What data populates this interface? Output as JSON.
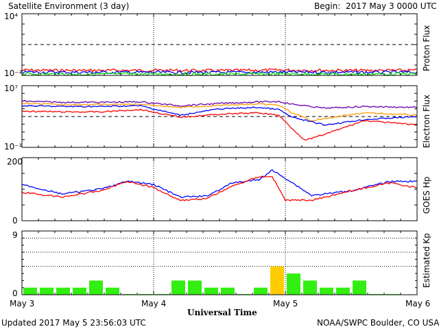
{
  "header": {
    "title": "Satellite Environment (3 day)",
    "begin_label": "Begin:",
    "begin_value": "2017 May 3 0000 UTC"
  },
  "footer": {
    "updated": "Updated 2017 May  5 23:56:03 UTC",
    "source": "NOAA/SWPC Boulder, CO USA"
  },
  "x_axis": {
    "label": "Universal Time",
    "ticks": [
      "May 3",
      "May 4",
      "May 5",
      "May 6"
    ],
    "range_days": [
      0,
      3
    ]
  },
  "colors": {
    "red": "#ff0000",
    "blue": "#0000ff",
    "green": "#00dd00",
    "purple": "#6600aa",
    "orange": "#ff9900",
    "kp_green": "#33ee11",
    "kp_yellow": "#ffcc00"
  },
  "chart_data": [
    {
      "type": "line",
      "panel": "proton",
      "ylabel": "Proton Flux",
      "yscale": "log",
      "ylim": [
        0.01,
        10000
      ],
      "tick_labels": [
        "10⁴",
        "10⁻²"
      ],
      "threshold": 10,
      "series": [
        {
          "color": "red",
          "x": [
            0,
            0.5,
            1,
            1.5,
            2,
            2.5,
            3
          ],
          "y": [
            0.032,
            0.03,
            0.031,
            0.029,
            0.033,
            0.03,
            0.031
          ]
        },
        {
          "color": "blue",
          "x": [
            0,
            0.5,
            1,
            1.5,
            2,
            2.5,
            3
          ],
          "y": [
            0.021,
            0.02,
            0.02,
            0.019,
            0.021,
            0.02,
            0.02
          ]
        },
        {
          "color": "green",
          "x": [
            0,
            0.5,
            1,
            1.5,
            2,
            2.5,
            3
          ],
          "y": [
            0.014,
            0.013,
            0.014,
            0.013,
            0.014,
            0.013,
            0.014
          ]
        }
      ]
    },
    {
      "type": "line",
      "panel": "electron",
      "ylabel": "Electron Flux",
      "yscale": "log",
      "ylim": [
        0.1,
        10000000
      ],
      "tick_labels": [
        "10⁷",
        "10⁻¹"
      ],
      "threshold": 1000,
      "series": [
        {
          "color": "purple",
          "x": [
            0,
            0.3,
            0.6,
            0.9,
            1.2,
            1.5,
            1.8,
            1.95,
            2.05,
            2.3,
            2.6,
            3.0
          ],
          "y": [
            100000,
            70000,
            70000,
            80000,
            25000,
            50000,
            80000,
            90000,
            40000,
            12000,
            20000,
            15000
          ]
        },
        {
          "color": "orange",
          "x": [
            0,
            0.3,
            0.6,
            0.9,
            1.2,
            1.5,
            1.8,
            1.95,
            2.05,
            2.2,
            2.6,
            3.0
          ],
          "y": [
            50000,
            35000,
            35000,
            40000,
            15000,
            28000,
            40000,
            30000,
            3000,
            300,
            3000,
            1500
          ]
        },
        {
          "color": "blue",
          "x": [
            0,
            0.3,
            0.6,
            0.9,
            1.2,
            1.5,
            1.8,
            1.95,
            2.05,
            2.3,
            2.6,
            3.0
          ],
          "y": [
            25000,
            20000,
            20000,
            25000,
            1500,
            10000,
            15000,
            8000,
            800,
            80,
            400,
            1000
          ]
        },
        {
          "color": "red",
          "x": [
            0,
            0.3,
            0.6,
            0.9,
            1.2,
            1.5,
            1.8,
            1.95,
            2.05,
            2.15,
            2.3,
            2.6,
            3.0
          ],
          "y": [
            5000,
            4000,
            4000,
            8000,
            800,
            2000,
            3000,
            1500,
            30,
            0.8,
            5,
            300,
            80
          ]
        }
      ]
    },
    {
      "type": "line",
      "panel": "goes_hp",
      "ylabel": "GOES Hp",
      "ylim": [
        0,
        200
      ],
      "tick_labels": [
        "200",
        "0"
      ],
      "series": [
        {
          "color": "blue",
          "x": [
            0,
            0.3,
            0.6,
            0.8,
            1.0,
            1.2,
            1.4,
            1.6,
            1.8,
            1.9,
            2.0,
            2.2,
            2.5,
            2.8,
            3.0
          ],
          "y": [
            115,
            85,
            100,
            125,
            115,
            75,
            78,
            120,
            130,
            160,
            135,
            80,
            95,
            125,
            125
          ]
        },
        {
          "color": "red",
          "x": [
            0,
            0.3,
            0.6,
            0.8,
            1.0,
            1.2,
            1.4,
            1.6,
            1.8,
            1.9,
            2.0,
            2.2,
            2.5,
            2.8,
            3.0
          ],
          "y": [
            90,
            75,
            95,
            125,
            105,
            65,
            70,
            110,
            140,
            140,
            65,
            65,
            95,
            120,
            105
          ]
        }
      ]
    },
    {
      "type": "bar",
      "panel": "kp",
      "ylabel": "Estimated Kp",
      "ylim": [
        0,
        9
      ],
      "tick_labels": [
        "9",
        "0"
      ],
      "gridlines": [
        4,
        6,
        8
      ],
      "interval_hours": 3,
      "values": [
        1,
        1,
        1,
        1,
        2,
        1,
        0.1,
        0.1,
        0.1,
        2,
        2,
        1,
        1,
        0.1,
        1,
        4,
        3,
        2,
        1,
        1,
        2,
        0.1,
        0.1,
        0
      ]
    }
  ]
}
